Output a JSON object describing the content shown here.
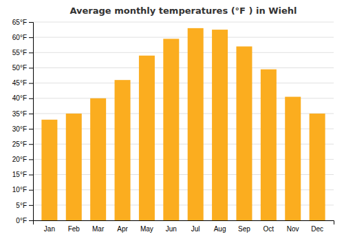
{
  "chart_data": {
    "type": "bar",
    "title": "Average monthly temperatures (°F ) in Wiehl",
    "categories": [
      "Jan",
      "Feb",
      "Mar",
      "Apr",
      "May",
      "Jun",
      "Jul",
      "Aug",
      "Sep",
      "Oct",
      "Nov",
      "Dec"
    ],
    "values": [
      33,
      35,
      40,
      46,
      54,
      59.5,
      63,
      62.5,
      57,
      49.5,
      40.5,
      35
    ],
    "color": "#FBAD1F",
    "ylim": [
      0,
      65
    ],
    "yticks": [
      {
        "value": 0,
        "label": "0°F"
      },
      {
        "value": 5,
        "label": "5°F"
      },
      {
        "value": 10,
        "label": "10°F"
      },
      {
        "value": 15,
        "label": "15°F"
      },
      {
        "value": 20,
        "label": "20°F"
      },
      {
        "value": 25,
        "label": "25°F"
      },
      {
        "value": 30,
        "label": "30°F"
      },
      {
        "value": 35,
        "label": "35°F"
      },
      {
        "value": 40,
        "label": "40°F"
      },
      {
        "value": 45,
        "label": "45°F"
      },
      {
        "value": 50,
        "label": "50°F"
      },
      {
        "value": 55,
        "label": "55°F"
      },
      {
        "value": 60,
        "label": "60°F"
      },
      {
        "value": 65,
        "label": "65°F"
      }
    ],
    "grid": true
  }
}
